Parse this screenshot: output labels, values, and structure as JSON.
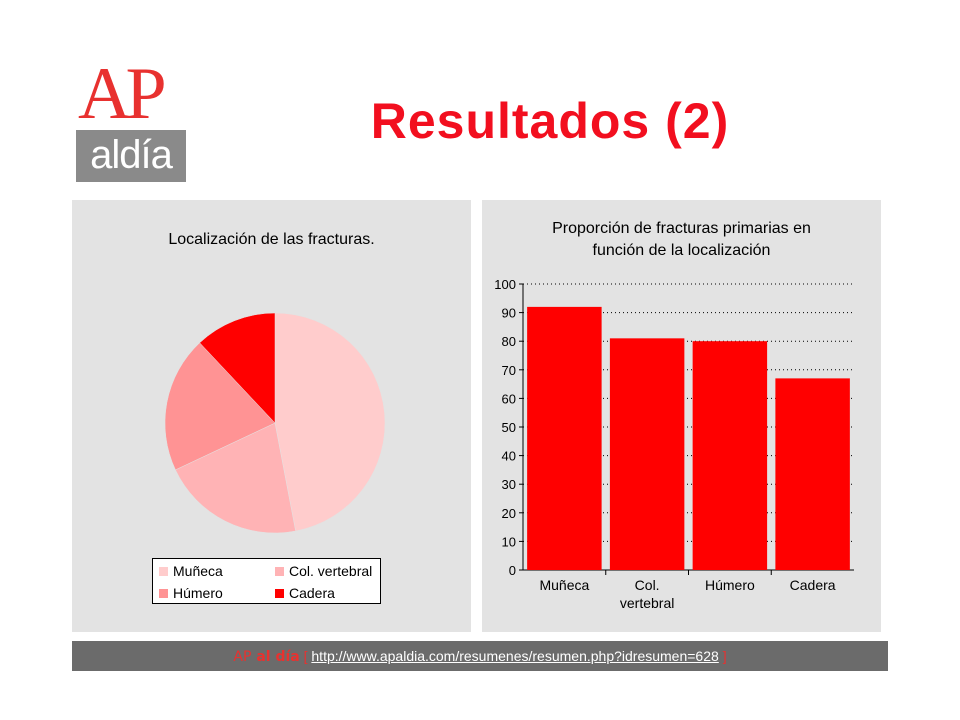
{
  "logo": {
    "ap": "AP",
    "aldia": "aldía"
  },
  "page_title": "Resultados (2)",
  "colors": {
    "accent": "#f20f1f",
    "bar": "#ff0000",
    "panel": "#e3e3e3",
    "footer": "#6b6b6b"
  },
  "chart_data": [
    {
      "type": "pie",
      "title": "Localización de las fracturas.",
      "categories": [
        "Muñeca",
        "Col. vertebral",
        "Húmero",
        "Cadera"
      ],
      "values": [
        47,
        21,
        20,
        12
      ],
      "colors": [
        "#ffcccc",
        "#ffb3b5",
        "#ff9394",
        "#ff0000"
      ],
      "legend_labels": [
        "Muñeca",
        "Col. vertebral",
        "Húmero",
        "Cadera"
      ],
      "legend_position": "bottom"
    },
    {
      "type": "bar",
      "title_lines": [
        "Proporción de fracturas primarias en",
        "función de la localización"
      ],
      "categories": [
        "Muñeca",
        "Col.|vertebral",
        "Húmero",
        "Cadera"
      ],
      "values": [
        92,
        81,
        80,
        67
      ],
      "ylim": [
        0,
        100
      ],
      "yticks": [
        "0",
        "10",
        "20",
        "30",
        "40",
        "50",
        "60",
        "70",
        "80",
        "90",
        "100"
      ],
      "grid": true
    }
  ],
  "footer": {
    "brand_ap": "AP",
    "brand_rest": " al día",
    "open_bracket": "[",
    "url": "http://www.apaldia.com/resumenes/resumen.php?idresumen=628",
    "close_bracket": "]"
  }
}
